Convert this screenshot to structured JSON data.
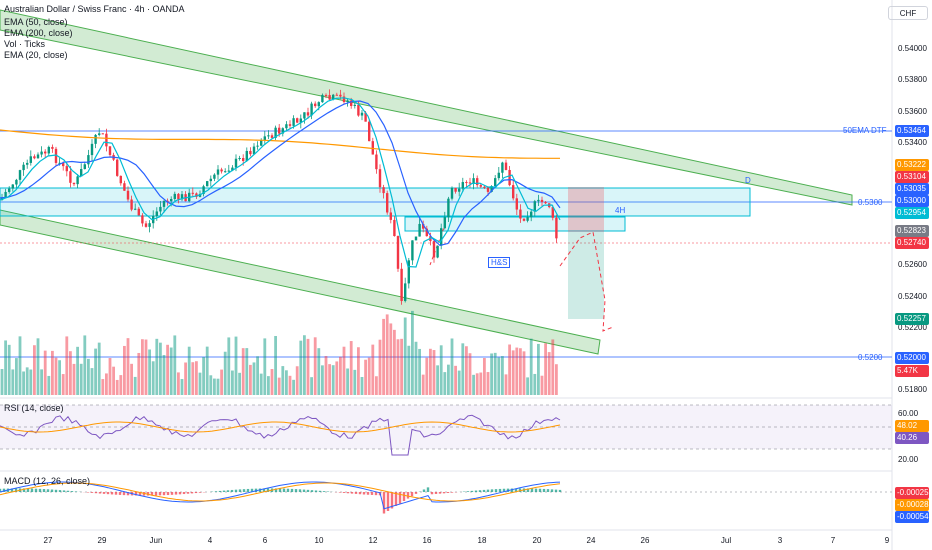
{
  "header": {
    "symbol_title": "Australian Dollar / Swiss Franc · 4h · OANDA",
    "indicators": [
      "EMA (50, close)",
      "EMA (200, close)",
      "Vol · Ticks",
      "EMA (20, close)"
    ]
  },
  "currency_button": "CHF",
  "price_axis": {
    "ticks": [
      "0.54000",
      "0.53800",
      "0.53600",
      "0.53400",
      "0.52600",
      "0.52400",
      "0.52200",
      "0.51800"
    ],
    "labels": [
      {
        "text": "0.53464",
        "color": "#2962ff"
      },
      {
        "text": "0.53222",
        "color": "#ff9800"
      },
      {
        "text": "0.53104",
        "color": "#f23645"
      },
      {
        "text": "0.53035",
        "color": "#2962ff"
      },
      {
        "text": "0.53000",
        "color": "#2962ff"
      },
      {
        "text": "0.52954",
        "color": "#00bcd4"
      },
      {
        "text": "0.52823",
        "color": "#787b86"
      },
      {
        "text": "0.52740",
        "color": "#f23645"
      },
      {
        "text": "0.52257",
        "color": "#089981"
      },
      {
        "text": "0.52000",
        "color": "#2962ff"
      },
      {
        "text": "5.47K",
        "color": "#f23645"
      }
    ]
  },
  "annotations": {
    "ema_dtf": "50EMA DTF",
    "level_5300": "0.5300",
    "level_5200": "0.5200",
    "tf_4h": "4H",
    "pattern": "H&S",
    "point_d": "D"
  },
  "rsi": {
    "title": "RSI (14, close)",
    "ticks": [
      "60.00",
      "20.00"
    ],
    "labels": [
      {
        "text": "48.02",
        "color": "#ff9800"
      },
      {
        "text": "40.26",
        "color": "#7e57c2"
      }
    ]
  },
  "macd": {
    "title": "MACD (12, 26, close)",
    "labels": [
      {
        "text": "-0.00025",
        "color": "#f23645"
      },
      {
        "text": "-0.00028",
        "color": "#ff9800"
      },
      {
        "text": "-0.00054",
        "color": "#2962ff"
      }
    ]
  },
  "time_axis": {
    "ticks": [
      "27",
      "29",
      "Jun",
      "4",
      "6",
      "10",
      "12",
      "16",
      "18",
      "20",
      "24",
      "26",
      "Jul",
      "3",
      "7",
      "9"
    ]
  },
  "colors": {
    "bull": "#089981",
    "bear": "#f23645",
    "ema20": "#00bcd4",
    "ema50": "#2962ff",
    "ema200": "#ff9800",
    "channel": "#4caf50",
    "zone": "#00bcd4"
  }
}
